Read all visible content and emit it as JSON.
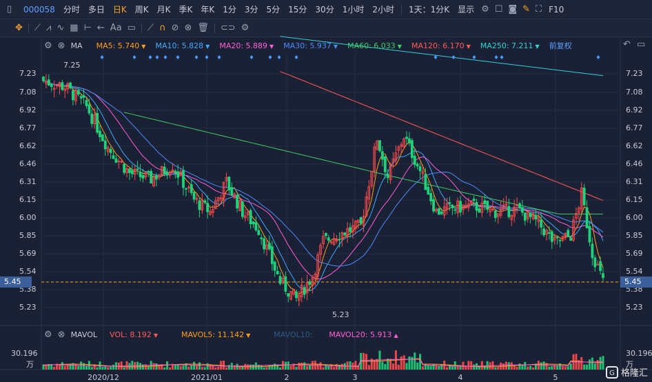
{
  "toolbar": {
    "code": "000058",
    "periods": [
      "分时",
      "多日",
      "日K",
      "周K",
      "月K",
      "季K",
      "年K",
      "1分",
      "3分",
      "5分",
      "15分",
      "30分",
      "1小时",
      "2小时"
    ],
    "active_period": "日K",
    "range_label": "1天：1分K",
    "display_label": "显示",
    "f10_label": "F10"
  },
  "drawbar": {
    "text_tool": "Aa"
  },
  "ma_legend": {
    "label": "MA",
    "items": [
      {
        "text": "MA5: 5.740",
        "color": "#ff9f1a"
      },
      {
        "text": "MA10: 5.828",
        "color": "#3fa9ff"
      },
      {
        "text": "MA20: 5.889",
        "color": "#ff5fd6"
      },
      {
        "text": "MA30: 5.937",
        "color": "#4a8cff"
      },
      {
        "text": "MA60: 6.033",
        "color": "#3ccf6a"
      },
      {
        "text": "MA120: 6.170",
        "color": "#ff5a5a"
      },
      {
        "text": "MA250: 7.211",
        "color": "#2ed3d3"
      }
    ],
    "adjust": "前复权"
  },
  "vol_legend": {
    "label": "MAVOL",
    "items": [
      {
        "text": "VOL: 8.192",
        "color": "#ff5a5a"
      },
      {
        "text": "MAVOL5: 11.142",
        "color": "#ff9f1a"
      },
      {
        "text": "MAVOL10:",
        "color": "#2b5a8a"
      },
      {
        "text": "MAVOL20: 5.913",
        "color": "#ff5fd6"
      }
    ]
  },
  "price_axis": [
    "7.23",
    "7.08",
    "6.92",
    "6.77",
    "6.62",
    "6.46",
    "6.31",
    "6.15",
    "6.00",
    "5.85",
    "5.69",
    "5.54",
    "5.45",
    "5.38",
    "5.23"
  ],
  "current_price": "5.45",
  "annotations": {
    "high": "7.25",
    "low": "5.23"
  },
  "vol_axis": {
    "max": "30.196",
    "unit": "万"
  },
  "dates": [
    "2020/12",
    "2021/01",
    "2",
    "3",
    "4",
    "5"
  ],
  "brand": "格隆汇",
  "colors": {
    "up": "#ff4d4d",
    "down": "#1fd17b",
    "bg": "#1b2134",
    "accent": "#f5a623"
  }
}
